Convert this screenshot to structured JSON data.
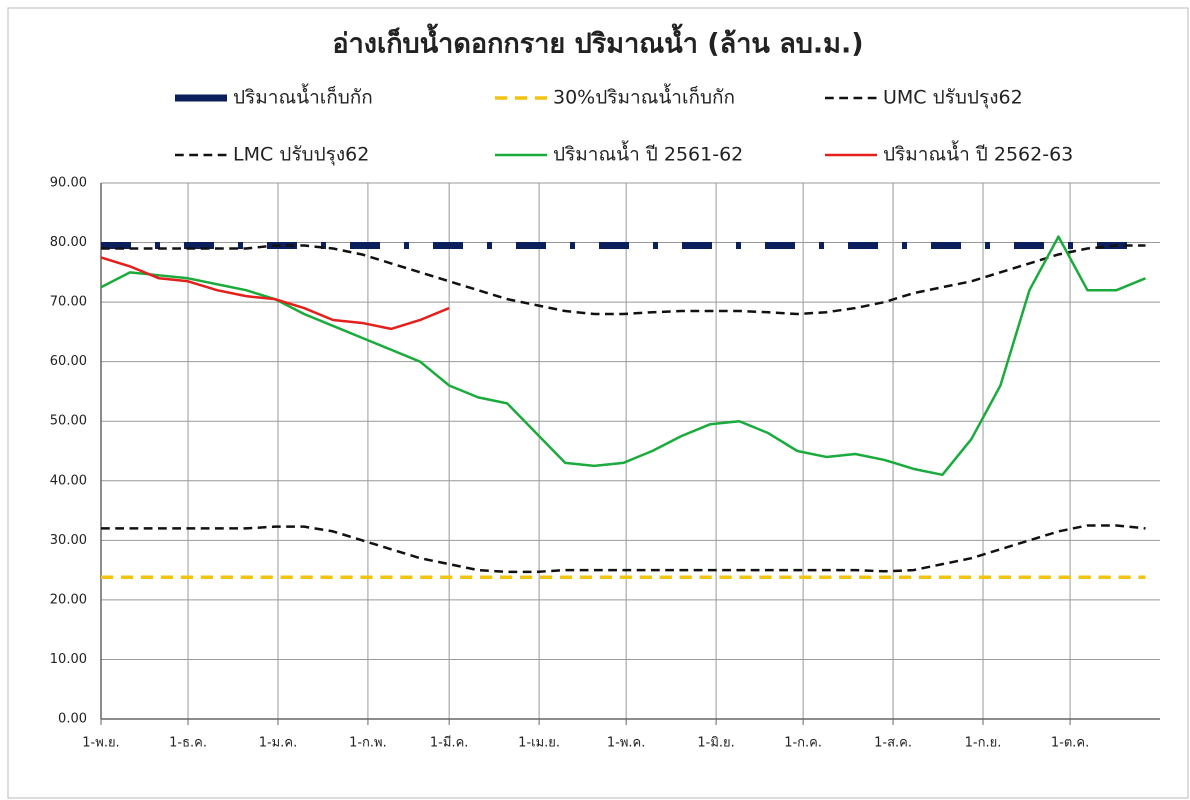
{
  "chart_data": {
    "type": "line",
    "title": "อ่างเก็บน้ำดอกกราย  ปริมาณน้ำ (ล้าน ลบ.ม.)",
    "x": [
      0,
      10,
      20,
      30,
      40,
      50,
      60,
      70,
      80,
      90,
      100,
      110,
      120,
      130,
      140,
      150,
      160,
      170,
      180,
      190,
      200,
      210,
      220,
      230,
      240,
      250,
      260,
      270,
      280,
      290,
      300,
      310,
      320,
      330,
      340,
      350,
      360
    ],
    "xlim": [
      0,
      365
    ],
    "xticks": [
      {
        "value": 0,
        "label": "1-พ.ย."
      },
      {
        "value": 30,
        "label": "1-ธ.ค."
      },
      {
        "value": 61,
        "label": "1-ม.ค."
      },
      {
        "value": 92,
        "label": "1-ก.พ."
      },
      {
        "value": 120,
        "label": "1-มี.ค."
      },
      {
        "value": 151,
        "label": "1-เม.ย."
      },
      {
        "value": 181,
        "label": "1-พ.ค."
      },
      {
        "value": 212,
        "label": "1-มิ.ย."
      },
      {
        "value": 242,
        "label": "1-ก.ค."
      },
      {
        "value": 273,
        "label": "1-ส.ค."
      },
      {
        "value": 304,
        "label": "1-ก.ย."
      },
      {
        "value": 334,
        "label": "1-ต.ค."
      }
    ],
    "ylim": [
      0,
      90
    ],
    "yticks": [
      {
        "value": 0,
        "label": "0.00"
      },
      {
        "value": 10,
        "label": "10.00"
      },
      {
        "value": 20,
        "label": "20.00"
      },
      {
        "value": 30,
        "label": "30.00"
      },
      {
        "value": 40,
        "label": "40.00"
      },
      {
        "value": 50,
        "label": "50.00"
      },
      {
        "value": 60,
        "label": "60.00"
      },
      {
        "value": 70,
        "label": "70.00"
      },
      {
        "value": 80,
        "label": "80.00"
      },
      {
        "value": 90,
        "label": "90.00"
      }
    ],
    "grid": true,
    "series": [
      {
        "name": "ปริมาณน้ำเก็บกัก",
        "color": "#0b1f5c",
        "style": "dash-dot",
        "width": 7,
        "values": [
          79.5,
          79.5,
          79.5,
          79.5,
          79.5,
          79.5,
          79.5,
          79.5,
          79.5,
          79.5,
          79.5,
          79.5,
          79.5,
          79.5,
          79.5,
          79.5,
          79.5,
          79.5,
          79.5,
          79.5,
          79.5,
          79.5,
          79.5,
          79.5,
          79.5,
          79.5,
          79.5,
          79.5,
          79.5,
          79.5,
          79.5,
          79.5,
          79.5,
          79.5,
          79.5,
          79.5,
          79.5
        ]
      },
      {
        "name": "30%ปริมาณน้ำเก็บกัก",
        "color": "#f2c40f",
        "style": "dashed",
        "width": 3.5,
        "values": [
          23.8,
          23.8,
          23.8,
          23.8,
          23.8,
          23.8,
          23.8,
          23.8,
          23.8,
          23.8,
          23.8,
          23.8,
          23.8,
          23.8,
          23.8,
          23.8,
          23.8,
          23.8,
          23.8,
          23.8,
          23.8,
          23.8,
          23.8,
          23.8,
          23.8,
          23.8,
          23.8,
          23.8,
          23.8,
          23.8,
          23.8,
          23.8,
          23.8,
          23.8,
          23.8,
          23.8,
          23.8
        ]
      },
      {
        "name": "UMC ปรับปรุง62",
        "color": "#111111",
        "style": "dashed",
        "width": 2.5,
        "values": [
          79,
          79,
          79,
          79,
          79,
          79,
          79.5,
          79.5,
          79,
          78,
          76.5,
          75,
          73.5,
          72,
          70.5,
          69.5,
          68.5,
          68,
          68,
          68.3,
          68.5,
          68.5,
          68.5,
          68.3,
          68,
          68.3,
          69,
          70,
          71.5,
          72.5,
          73.5,
          75,
          76.5,
          78,
          79,
          79.5,
          79.5
        ]
      },
      {
        "name": "LMC ปรับปรุง62",
        "color": "#111111",
        "style": "dashed",
        "width": 2.5,
        "values": [
          32,
          32,
          32,
          32,
          32,
          32,
          32.3,
          32.3,
          31.5,
          30,
          28.5,
          27,
          26,
          25,
          24.7,
          24.7,
          25,
          25,
          25,
          25,
          25,
          25,
          25,
          25,
          25,
          25,
          25,
          24.8,
          25,
          26,
          27,
          28.5,
          30,
          31.5,
          32.5,
          32.5,
          32
        ]
      },
      {
        "name": "ปริมาณน้ำ ปี 2561-62",
        "color": "#1aab3c",
        "style": "solid",
        "width": 2.5,
        "values": [
          72.5,
          75,
          74.5,
          74,
          73,
          72,
          70.5,
          68,
          66,
          64,
          62,
          60,
          56,
          54,
          53,
          48,
          43,
          42.5,
          43,
          45,
          47.5,
          49.5,
          50,
          48,
          45,
          44,
          44.5,
          43.5,
          42,
          41,
          47,
          56,
          72,
          81,
          72,
          72,
          74
        ]
      },
      {
        "name": "ปริมาณน้ำ ปี 2562-63",
        "color": "#e3201b",
        "style": "solid",
        "width": 2.5,
        "values": [
          77.5,
          76,
          74,
          73.5,
          72,
          71,
          70.5,
          69,
          67,
          66.5,
          65.5,
          67,
          69,
          null,
          null,
          null,
          null,
          null,
          null,
          null,
          null,
          null,
          null,
          null,
          null,
          null,
          null,
          null,
          null,
          null,
          null,
          null,
          null,
          null,
          null,
          null,
          null
        ]
      }
    ]
  }
}
